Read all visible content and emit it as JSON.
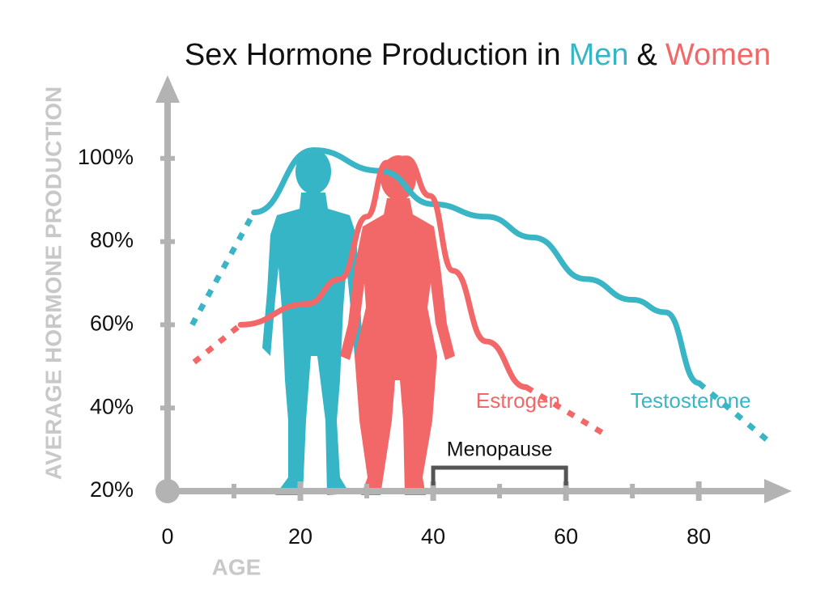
{
  "chart_data": {
    "type": "line",
    "title": [
      "Sex Hormone Production in",
      "Men",
      "&",
      "Women"
    ],
    "title_colors": [
      "#111111",
      "#35b5c6",
      "#111111",
      "#f26868"
    ],
    "y_label": "AVERAGE HORMONE PRODUCTION",
    "x_label": "AGE",
    "xlim": [
      0,
      94
    ],
    "ylim": [
      20,
      120
    ],
    "xticks": [
      0,
      20,
      40,
      60,
      80
    ],
    "yticks": [
      {
        "value": 20,
        "label": "20%"
      },
      {
        "value": 40,
        "label": "40%"
      },
      {
        "value": 60,
        "label": "60%"
      },
      {
        "value": 80,
        "label": "80%"
      },
      {
        "value": 100,
        "label": "100%"
      }
    ],
    "series": [
      {
        "name": "Testosterone",
        "color": "#3ab5c6",
        "x": [
          3.7,
          13,
          22,
          32,
          40,
          48,
          55,
          63,
          70,
          75,
          80,
          90.5
        ],
        "values": [
          60,
          87,
          102,
          97,
          89,
          86,
          81,
          71,
          66,
          63,
          46,
          32
        ]
      },
      {
        "name": "Estrogen",
        "color": "#f26868",
        "x": [
          4,
          11,
          21,
          26,
          30,
          33,
          36,
          39.5,
          43,
          48,
          54,
          65.5
        ],
        "values": [
          51,
          60,
          65,
          71,
          86,
          99,
          100,
          91,
          73,
          56,
          45,
          34
        ]
      }
    ],
    "annotation": {
      "text": "Menopause",
      "x": [
        40,
        60
      ]
    }
  }
}
